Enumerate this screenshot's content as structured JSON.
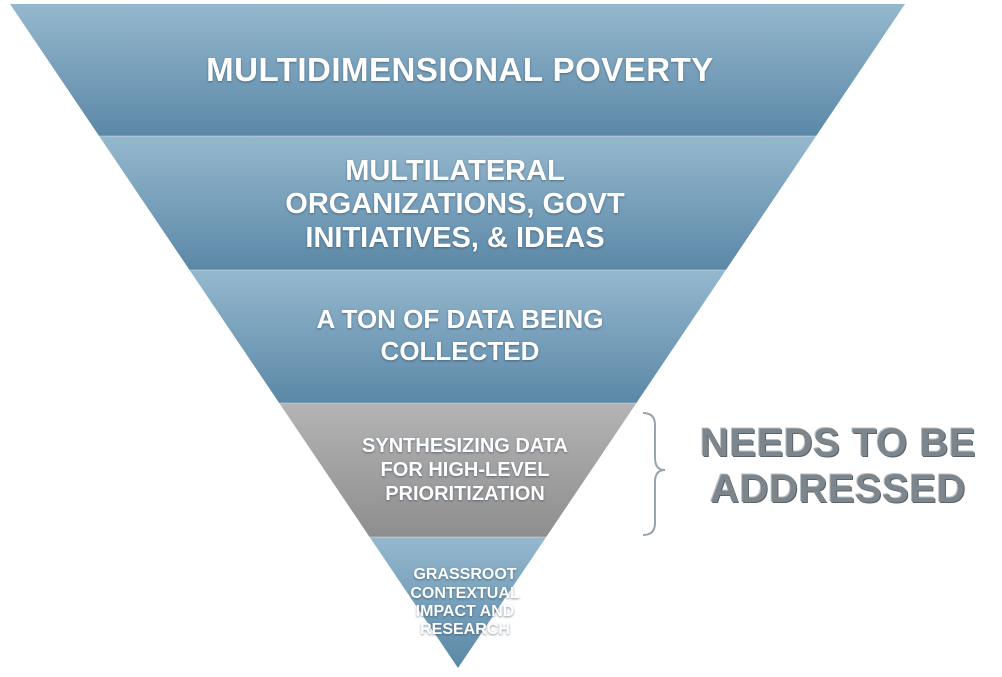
{
  "diagram": {
    "type": "inverted-pyramid",
    "tiers": [
      {
        "id": "tier-multidimensional-poverty",
        "label": "MULTIDIMENSIONAL POVERTY",
        "color": "#7fa6c0",
        "highlighted": false
      },
      {
        "id": "tier-multilateral-organizations",
        "label": "MULTILATERAL ORGANIZATIONS, GOVT INITIATIVES, & IDEAS",
        "color": "#7fa6c0",
        "highlighted": false
      },
      {
        "id": "tier-data-collected",
        "label": "A TON OF DATA BEING COLLECTED",
        "color": "#7fa6c0",
        "highlighted": false
      },
      {
        "id": "tier-synthesizing-data",
        "label": "SYNTHESIZING DATA FOR HIGH-LEVEL PRIORITIZATION",
        "color": "#a3a3a3",
        "highlighted": true
      },
      {
        "id": "tier-grassroot-research",
        "label": "GRASSROOT CONTEXTUAL IMPACT AND RESEARCH",
        "color": "#7fa6c0",
        "highlighted": false
      }
    ],
    "callout": {
      "text": "NEEDS TO BE ADDRESSED",
      "target_tier": 3,
      "color": "#7d868c"
    },
    "colors": {
      "tier_blue_light": "#93b7cd",
      "tier_blue_dark": "#5a87a6",
      "tier_gray_light": "#b3b3b3",
      "tier_gray_dark": "#8c8c8c",
      "label_text": "#ffffff",
      "bracket": "#9aa3a9"
    }
  }
}
